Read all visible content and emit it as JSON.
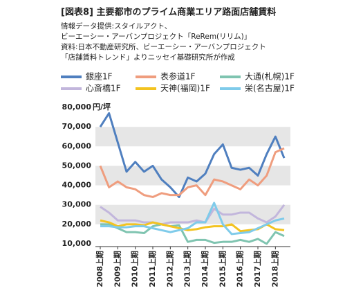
{
  "chart_data": {
    "type": "line",
    "title": "[図表8] 主要都市のプライム商業エリア路面店舗賃料",
    "notes": [
      "情報データ提供:スタイルアクト、",
      "ビーエーシー・アーバンプロジェクト「ReRem(リリム)」",
      "資料:日本不動産研究所、ビーエーシー・アーバンプロジェクト",
      "「店舗賃料トレンド」よりニッセイ基礎研究所が作成"
    ],
    "y_label": "円/坪",
    "categories": [
      "2008上期",
      null,
      "2009上期",
      null,
      "2010上期",
      null,
      "2011上期",
      null,
      "2012上期",
      null,
      "2013上期",
      null,
      "2014上期",
      null,
      "2015上期",
      null,
      "2016上期",
      null,
      "2017上期",
      null,
      "2018上期",
      null
    ],
    "series": [
      {
        "name": "銀座1F",
        "color": "#4f7fbf",
        "values": [
          70000,
          77000,
          62000,
          47000,
          52000,
          47000,
          50000,
          43000,
          39000,
          34000,
          44000,
          42000,
          46000,
          56000,
          61000,
          49000,
          48000,
          49000,
          45000,
          56000,
          65000,
          54000
        ]
      },
      {
        "name": "表参道1F",
        "color": "#ef9d7e",
        "values": [
          50000,
          39000,
          42000,
          39000,
          38000,
          35000,
          34000,
          36000,
          35000,
          35000,
          39000,
          40000,
          35000,
          43000,
          42000,
          40000,
          38000,
          43000,
          40000,
          45000,
          57000,
          59000
        ]
      },
      {
        "name": "大通(札幌)1F",
        "color": "#7fc4b0",
        "values": [
          20000,
          20000,
          18000,
          16000,
          16000,
          15500,
          19000,
          20000,
          19000,
          19500,
          11000,
          12000,
          12000,
          10500,
          11000,
          11000,
          12000,
          11000,
          12500,
          10000,
          16000,
          14000
        ]
      },
      {
        "name": "心斎橋1F",
        "color": "#c2b6dc",
        "values": [
          29000,
          26000,
          22000,
          22000,
          22000,
          21000,
          21000,
          20000,
          21000,
          21000,
          21000,
          22000,
          21000,
          28000,
          25000,
          25000,
          26000,
          26000,
          23000,
          21000,
          24000,
          30000
        ]
      },
      {
        "name": "天神(福岡)1F",
        "color": "#f3c320",
        "values": [
          22000,
          21000,
          19000,
          20000,
          20000,
          19500,
          21000,
          20000,
          19000,
          18000,
          17000,
          17500,
          18500,
          19000,
          19000,
          20000,
          16500,
          17000,
          17500,
          20000,
          17500,
          17000
        ]
      },
      {
        "name": "栄(名古屋)1F",
        "color": "#7fcbea",
        "values": [
          19000,
          19000,
          18500,
          18500,
          19000,
          19000,
          18000,
          17000,
          16000,
          17000,
          18000,
          21000,
          21000,
          31000,
          20000,
          15000,
          15500,
          16000,
          18000,
          20000,
          22000,
          23000
        ]
      }
    ],
    "ylim": [
      10000,
      80000
    ],
    "yticks": [
      {
        "value": 10000,
        "label": "10,000"
      },
      {
        "value": 20000,
        "label": "20,000"
      },
      {
        "value": 30000,
        "label": "30,000"
      },
      {
        "value": 40000,
        "label": "40,000"
      },
      {
        "value": 50000,
        "label": "50,000"
      },
      {
        "value": 60000,
        "label": "60,000"
      },
      {
        "value": 70000,
        "label": "70,000"
      },
      {
        "value": 80000,
        "label": "80,000"
      }
    ],
    "bands": true
  }
}
